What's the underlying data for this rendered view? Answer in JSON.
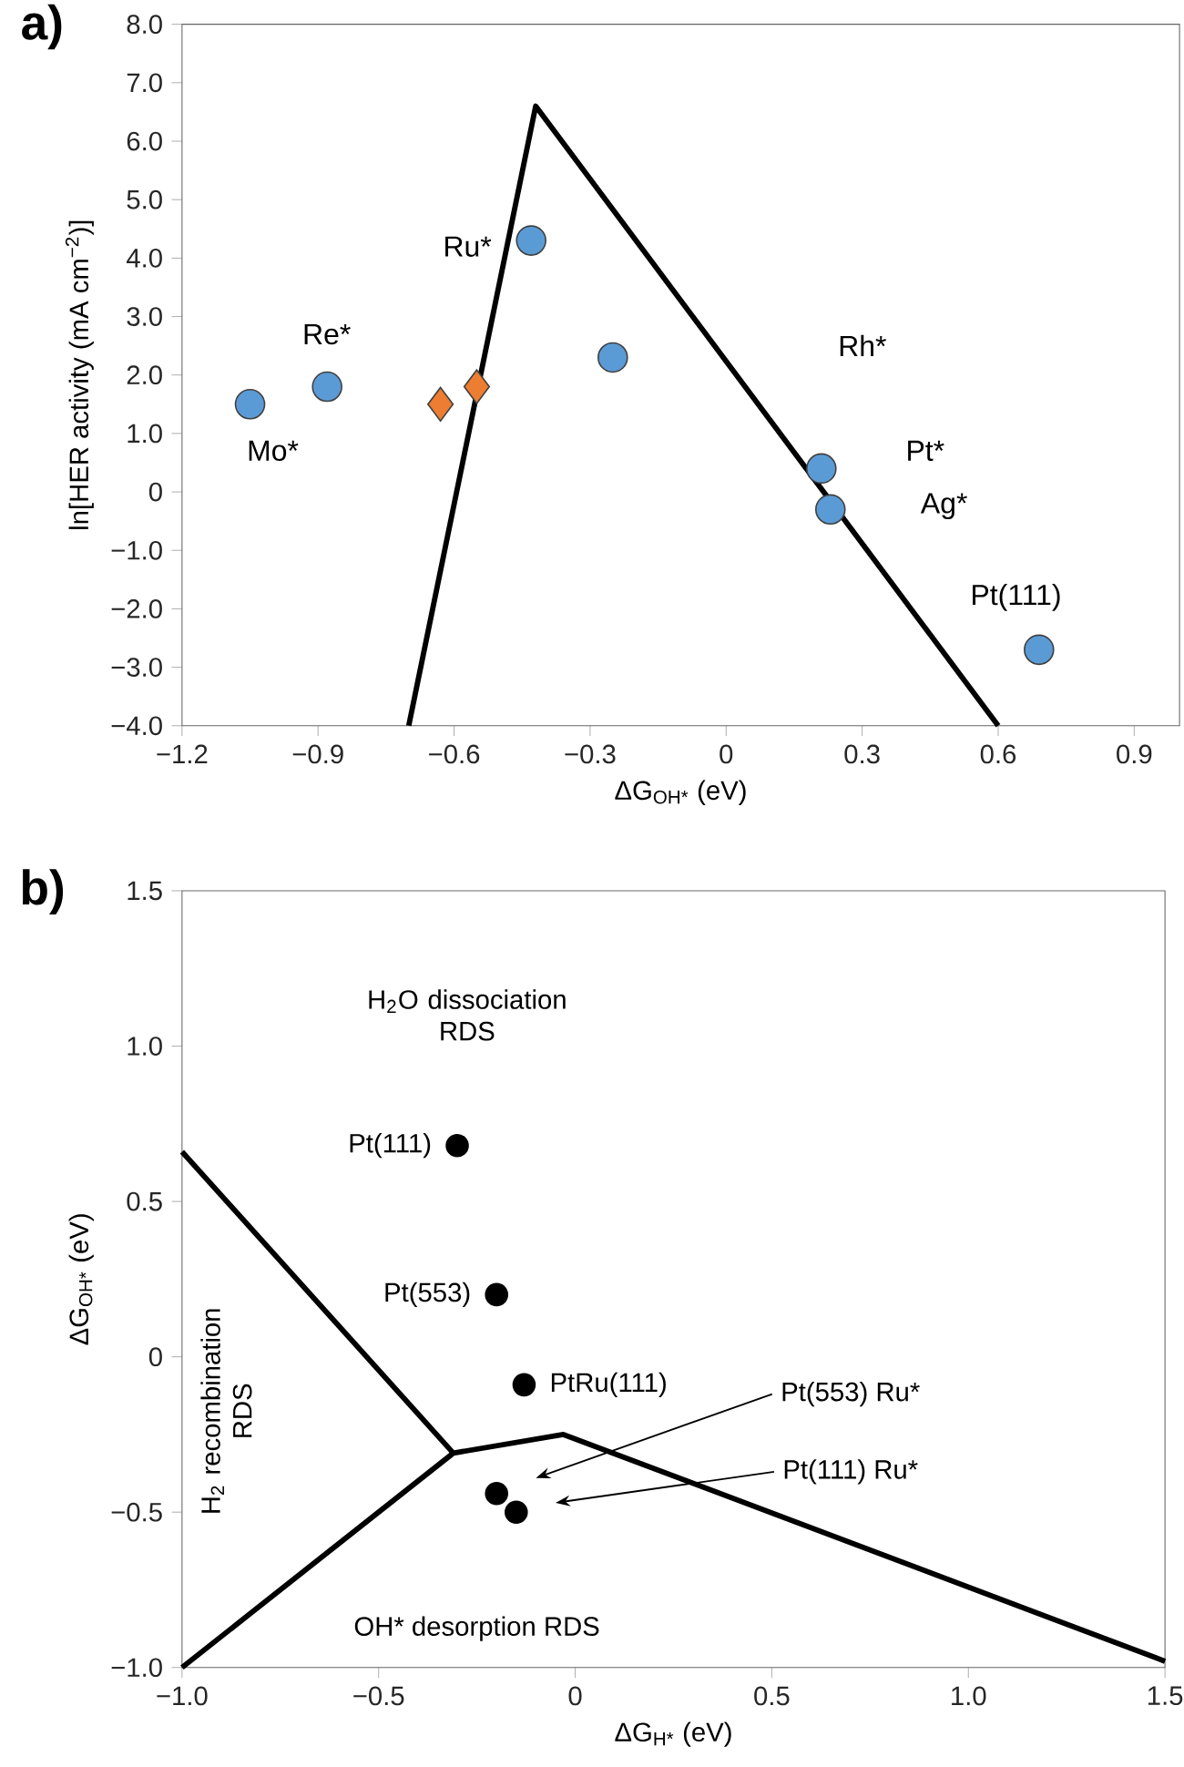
{
  "chart_data": [
    {
      "type": "scatter",
      "title": "a)",
      "xlabel": "ΔG$_{OH*}$ (eV)",
      "ylabel": "ln[HER activity (mA cm$^{−2}$)]",
      "xlim": [
        -1.2,
        1.0
      ],
      "ylim": [
        -4,
        8
      ],
      "xticks": [
        {
          "value": -1.2,
          "label": "−1.2"
        },
        {
          "value": -0.9,
          "label": "−0.9"
        },
        {
          "value": -0.6,
          "label": "−0.6"
        },
        {
          "value": -0.3,
          "label": "−0.3"
        },
        0,
        0.3,
        0.6,
        0.9
      ],
      "yticks": [
        {
          "value": -4,
          "label": "−4.0"
        },
        {
          "value": -3,
          "label": "−3.0"
        },
        {
          "value": -2,
          "label": "−2.0"
        },
        {
          "value": -1,
          "label": "−1.0"
        },
        0,
        {
          "value": 1,
          "label": "1.0"
        },
        {
          "value": 2,
          "label": "2.0"
        },
        {
          "value": 3,
          "label": "3.0"
        },
        {
          "value": 4,
          "label": "4.0"
        },
        {
          "value": 5,
          "label": "5.0"
        },
        {
          "value": 6,
          "label": "6.0"
        },
        {
          "value": 7,
          "label": "7.0"
        },
        {
          "value": 8,
          "label": "8.0"
        }
      ],
      "series": [
        {
          "type": "line",
          "color": "#000000",
          "marker": "none",
          "x": [
            -0.7,
            -0.42,
            0.6
          ],
          "values": [
            -4.0,
            6.6,
            -4.0
          ]
        },
        {
          "color": "#5b9bd5",
          "marker": "circle",
          "x": [
            -1.05,
            -0.88,
            -0.43,
            -0.25,
            0.21,
            0.23,
            0.69
          ],
          "values": [
            1.5,
            1.8,
            4.3,
            2.3,
            0.4,
            -0.3,
            -2.7
          ]
        },
        {
          "color": "#ed7d31",
          "marker": "diamond",
          "x": [
            -0.63,
            -0.55
          ],
          "values": [
            1.5,
            1.8
          ]
        }
      ],
      "annotations": [
        "Mo*",
        "Re*",
        "Ru*",
        "Rh*",
        "Pt*",
        "Ag*",
        "Pt(111)"
      ]
    },
    {
      "type": "scatter",
      "title": "b)",
      "xlabel": "ΔG$_{H*}$ (eV)",
      "ylabel": "ΔG$_{OH*}$ (eV)",
      "xlim": [
        -1.0,
        1.5
      ],
      "ylim": [
        -1.0,
        1.5
      ],
      "xticks": [
        {
          "value": -1.0,
          "label": "−1.0"
        },
        {
          "value": -0.5,
          "label": "−0.5"
        },
        0,
        0.5,
        {
          "value": 1.0,
          "label": "1.0"
        },
        1.5
      ],
      "yticks": [
        {
          "value": -1.0,
          "label": "−1.0"
        },
        {
          "value": -0.5,
          "label": "−0.5"
        },
        0,
        0.5,
        {
          "value": 1.0,
          "label": "1.0"
        },
        1.5
      ],
      "series": [
        {
          "type": "line",
          "color": "#000000",
          "marker": "none",
          "x": [
            -1.0,
            -0.31
          ],
          "values": [
            0.66,
            -0.31
          ]
        },
        {
          "type": "line",
          "color": "#000000",
          "marker": "none",
          "x": [
            -1.0,
            -0.31,
            -0.03,
            1.5
          ],
          "values": [
            -1.0,
            -0.31,
            -0.25,
            -0.98
          ]
        },
        {
          "color": "#000000",
          "marker": "circle",
          "x": [
            -0.3,
            -0.2,
            -0.13,
            -0.2,
            -0.15
          ],
          "values": [
            0.68,
            0.2,
            -0.09,
            -0.44,
            -0.5
          ]
        }
      ],
      "annotations": [
        {
          "text": "Pt(111)",
          "x": -0.3,
          "y": 0.68
        },
        {
          "text": "Pt(553)",
          "x": -0.2,
          "y": 0.2
        },
        {
          "text": "PtRu(111)",
          "x": -0.13,
          "y": -0.09
        },
        "Pt(553) Ru*",
        "Pt(111) Ru*",
        "H$_{2}$O dissociation RDS",
        "H$_{2}$ recombination RDS",
        "OH* desorption RDS"
      ]
    }
  ]
}
